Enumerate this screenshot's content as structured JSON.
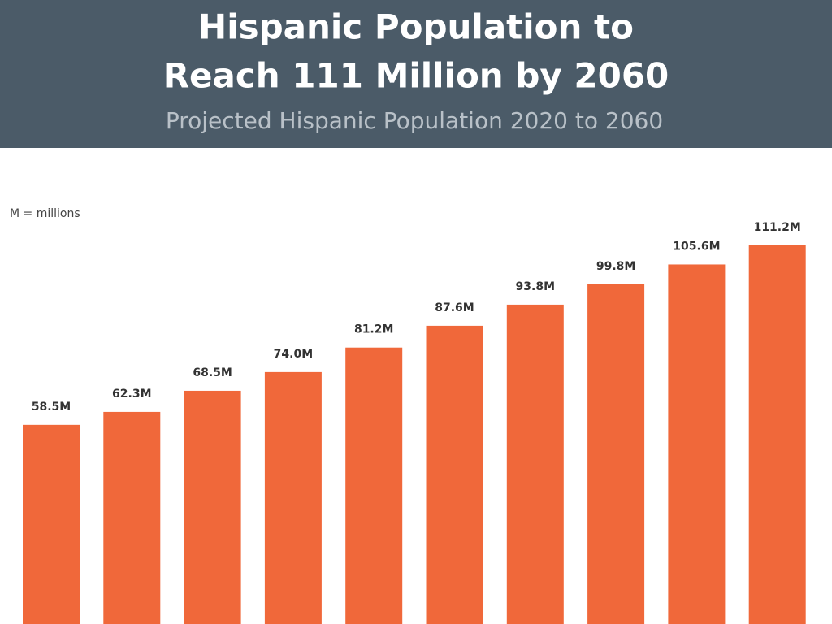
{
  "chart_data": {
    "type": "bar",
    "title": [
      "Hispanic Population to",
      "Reach 111 Million by 2060"
    ],
    "subtitle": "Projected Hispanic Population 2020 to 2060",
    "note": "M = millions",
    "values": [
      58.5,
      62.3,
      68.5,
      74.0,
      81.2,
      87.6,
      93.8,
      99.8,
      105.6,
      111.2
    ],
    "value_labels": [
      "58.5M",
      "62.3M",
      "68.5M",
      "74.0M",
      "81.2M",
      "87.6M",
      "93.8M",
      "99.8M",
      "105.6M",
      "111.2M"
    ],
    "color": "#f0683a"
  }
}
